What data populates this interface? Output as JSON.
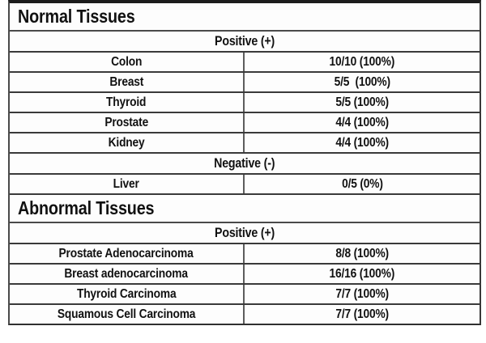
{
  "table": {
    "sections": [
      {
        "title": "Normal Tissues",
        "groups": [
          {
            "header": "Positive (+)",
            "rows": [
              [
                "Colon",
                "10/10 (100%)"
              ],
              [
                "Breast",
                "5/5  (100%)"
              ],
              [
                "Thyroid",
                "5/5 (100%)"
              ],
              [
                "Prostate",
                "4/4 (100%)"
              ],
              [
                "Kidney",
                "4/4 (100%)"
              ]
            ]
          },
          {
            "header": "Negative (-)",
            "rows": [
              [
                "Liver",
                "0/5 (0%)"
              ]
            ]
          }
        ]
      },
      {
        "title": "Abnormal Tissues",
        "groups": [
          {
            "header": "Positive (+)",
            "rows": [
              [
                "Prostate Adenocarcinoma",
                "8/8 (100%)"
              ],
              [
                "Breast adenocarcinoma",
                "16/16 (100%)"
              ],
              [
                "Thyroid Carcinoma",
                "7/7 (100%)"
              ],
              [
                "Squamous Cell Carcinoma",
                "7/7 (100%)"
              ]
            ]
          }
        ]
      }
    ]
  }
}
